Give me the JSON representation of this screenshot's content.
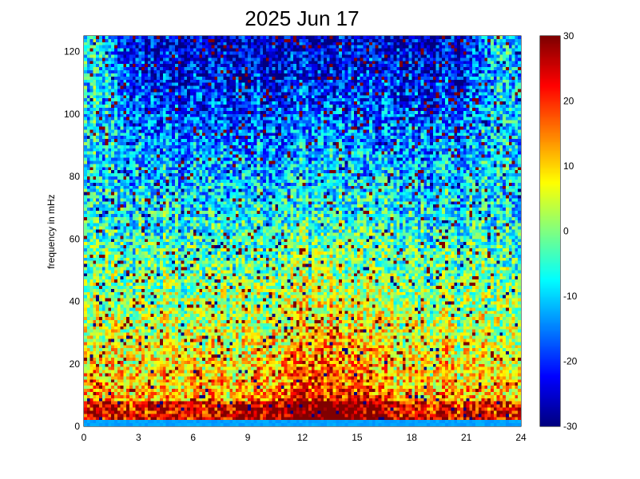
{
  "chart_data": {
    "type": "heatmap",
    "title": "2025 Jun 17",
    "xlabel": "",
    "ylabel": "frequency in mHz",
    "xlim": [
      0,
      24
    ],
    "ylim": [
      0,
      125
    ],
    "xticks": [
      "0",
      "3",
      "6",
      "9",
      "12",
      "15",
      "18",
      "21",
      "24"
    ],
    "yticks": [
      "0",
      "20",
      "40",
      "60",
      "80",
      "100",
      "120"
    ],
    "colorbar": {
      "min": -30,
      "max": 30,
      "ticks": [
        "30",
        "20",
        "10",
        "0",
        "-10",
        "-20",
        "-30"
      ],
      "colormap": "jet"
    },
    "grid": false,
    "legend": "none",
    "description_values": {
      "x_bins": 144,
      "y_bins": 125
    }
  }
}
